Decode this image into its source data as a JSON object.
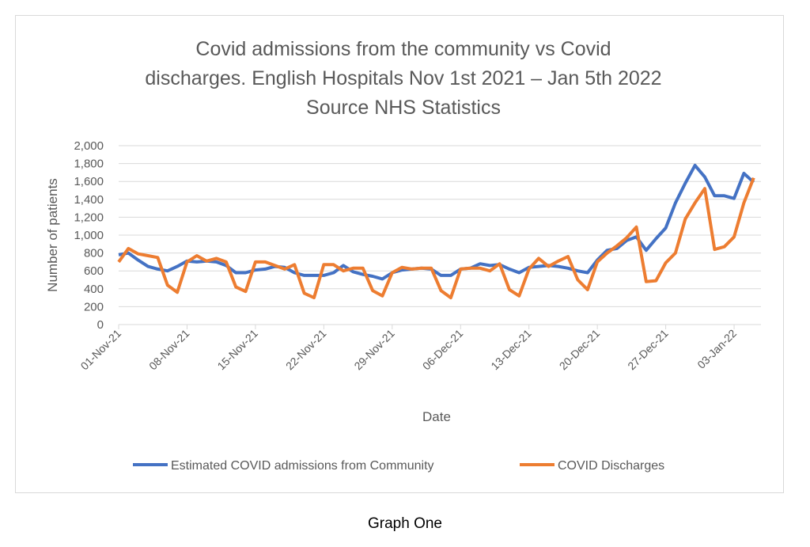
{
  "caption": "Graph One",
  "chart_data": {
    "type": "line",
    "title_lines": [
      "Covid admissions from the community vs Covid",
      "discharges. English Hospitals Nov 1st 2021 – Jan 5th 2022",
      "Source NHS Statistics"
    ],
    "xlabel": "Date",
    "ylabel": "Number of patients",
    "ylim": [
      0,
      2000
    ],
    "y_ticks": [
      "0",
      "200",
      "400",
      "600",
      "800",
      "1,000",
      "1,200",
      "1,400",
      "1,600",
      "1,800",
      "2,000"
    ],
    "x_ticks": [
      "01-Nov-21",
      "08-Nov-21",
      "15-Nov-21",
      "22-Nov-21",
      "29-Nov-21",
      "06-Dec-21",
      "13-Dec-21",
      "20-Dec-21",
      "27-Dec-21",
      "03-Jan-22"
    ],
    "x_start": "01-Nov-21",
    "x_days": 66,
    "grid": true,
    "legend_position": "bottom",
    "series": [
      {
        "name": "Estimated COVID admissions from Community",
        "color": "#4472c4",
        "values": [
          780,
          800,
          720,
          650,
          620,
          600,
          650,
          710,
          700,
          710,
          700,
          660,
          580,
          580,
          610,
          620,
          650,
          640,
          580,
          550,
          550,
          550,
          580,
          660,
          590,
          560,
          540,
          510,
          580,
          610,
          620,
          630,
          620,
          550,
          550,
          620,
          630,
          680,
          660,
          670,
          620,
          580,
          640,
          650,
          660,
          650,
          630,
          600,
          580,
          720,
          830,
          850,
          940,
          980,
          830,
          960,
          1080,
          1360,
          1580,
          1780,
          1650,
          1440,
          1440,
          1410,
          1690,
          1590
        ]
      },
      {
        "name": "COVID Discharges",
        "color": "#ed7d31",
        "values": [
          700,
          850,
          790,
          770,
          750,
          440,
          360,
          700,
          770,
          710,
          740,
          700,
          420,
          370,
          700,
          700,
          660,
          620,
          670,
          350,
          300,
          670,
          670,
          600,
          630,
          630,
          380,
          320,
          580,
          640,
          620,
          630,
          630,
          380,
          300,
          620,
          630,
          630,
          600,
          680,
          390,
          320,
          620,
          740,
          650,
          710,
          760,
          500,
          390,
          700,
          800,
          880,
          970,
          1090,
          480,
          490,
          690,
          800,
          1180,
          1360,
          1520,
          840,
          870,
          980,
          1360,
          1640
        ]
      }
    ]
  }
}
